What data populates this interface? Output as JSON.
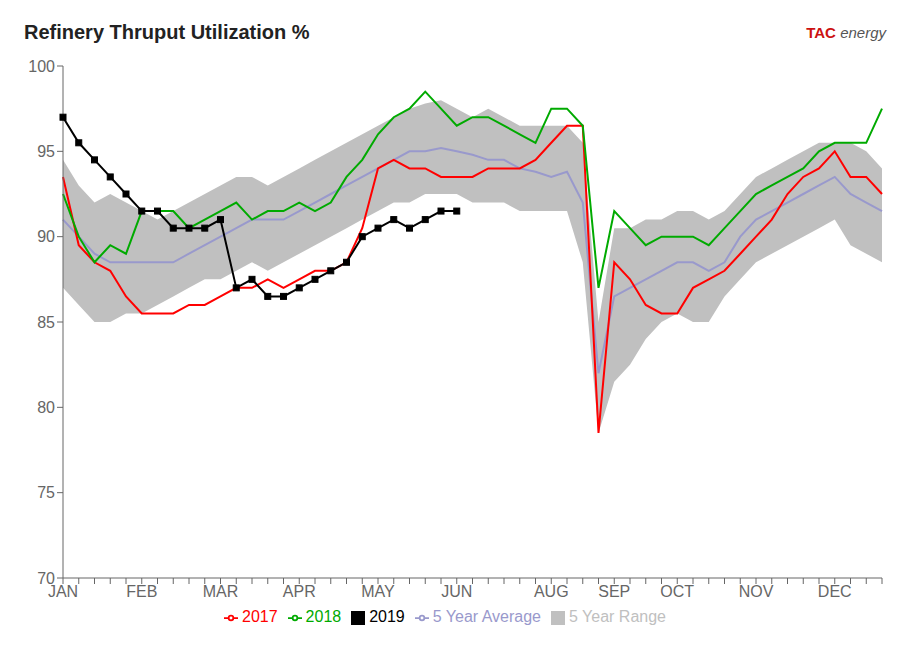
{
  "chart_data": {
    "type": "line",
    "title": "Refinery Thruput Utilization %",
    "annotations": [
      "TAC",
      "energy"
    ],
    "categories": [
      "JAN",
      null,
      null,
      null,
      null,
      "FEB",
      null,
      null,
      null,
      null,
      "MAR",
      null,
      null,
      null,
      null,
      "APR",
      null,
      null,
      null,
      null,
      "MAY",
      null,
      null,
      null,
      null,
      "JUN",
      null,
      null,
      null,
      null,
      null,
      "AUG",
      null,
      null,
      null,
      "SEP",
      null,
      null,
      null,
      "OCT",
      null,
      null,
      null,
      null,
      "NOV",
      null,
      null,
      null,
      null,
      "DEC",
      null,
      null,
      null
    ],
    "ylim": [
      70,
      100
    ],
    "yticks": [
      70,
      75,
      80,
      85,
      90,
      95,
      100
    ],
    "legend": "bottom",
    "series": [
      {
        "name": "5 Year Range",
        "type": "area",
        "color": "#c0c0c0",
        "values": [
          [
            87.0,
            94.5
          ],
          [
            86.0,
            93.0
          ],
          [
            85.0,
            92.0
          ],
          [
            85.0,
            92.5
          ],
          [
            85.5,
            92.0
          ],
          [
            85.5,
            91.5
          ],
          [
            86.0,
            91.0
          ],
          [
            86.5,
            91.5
          ],
          [
            87.0,
            92.0
          ],
          [
            87.5,
            92.5
          ],
          [
            87.5,
            93.0
          ],
          [
            88.0,
            93.5
          ],
          [
            88.5,
            93.5
          ],
          [
            88.0,
            93.0
          ],
          [
            88.5,
            93.5
          ],
          [
            89.0,
            94.0
          ],
          [
            89.5,
            94.5
          ],
          [
            90.0,
            95.0
          ],
          [
            90.5,
            95.5
          ],
          [
            91.0,
            96.0
          ],
          [
            91.5,
            96.5
          ],
          [
            92.0,
            97.0
          ],
          [
            92.0,
            97.5
          ],
          [
            92.5,
            97.8
          ],
          [
            92.5,
            98.0
          ],
          [
            92.5,
            97.5
          ],
          [
            92.0,
            97.0
          ],
          [
            92.0,
            97.5
          ],
          [
            92.0,
            97.0
          ],
          [
            91.5,
            96.5
          ],
          [
            91.5,
            96.5
          ],
          [
            91.5,
            96.5
          ],
          [
            91.5,
            96.5
          ],
          [
            88.5,
            95.5
          ],
          [
            78.5,
            85.0
          ],
          [
            81.5,
            90.5
          ],
          [
            82.5,
            90.5
          ],
          [
            84.0,
            91.0
          ],
          [
            85.0,
            91.0
          ],
          [
            85.5,
            91.5
          ],
          [
            85.0,
            91.5
          ],
          [
            85.0,
            91.0
          ],
          [
            86.5,
            91.5
          ],
          [
            87.5,
            92.5
          ],
          [
            88.5,
            93.5
          ],
          [
            89.0,
            94.0
          ],
          [
            89.5,
            94.5
          ],
          [
            90.0,
            95.0
          ],
          [
            90.5,
            95.5
          ],
          [
            91.0,
            95.5
          ],
          [
            89.5,
            95.5
          ],
          [
            89.0,
            95.0
          ],
          [
            88.5,
            94.0
          ]
        ]
      },
      {
        "name": "5 Year Average",
        "type": "line",
        "color": "#9999cc",
        "values": [
          91.0,
          90.0,
          89.0,
          88.5,
          88.5,
          88.5,
          88.5,
          88.5,
          89.0,
          89.5,
          90.0,
          90.5,
          91.0,
          91.0,
          91.0,
          91.5,
          92.0,
          92.5,
          93.0,
          93.5,
          94.0,
          94.5,
          95.0,
          95.0,
          95.2,
          95.0,
          94.8,
          94.5,
          94.5,
          94.0,
          93.8,
          93.5,
          93.8,
          92.0,
          82.0,
          86.5,
          87.0,
          87.5,
          88.0,
          88.5,
          88.5,
          88.0,
          88.5,
          90.0,
          91.0,
          91.5,
          92.0,
          92.5,
          93.0,
          93.5,
          92.5,
          92.0,
          91.5
        ]
      },
      {
        "name": "2017",
        "type": "line",
        "color": "red",
        "values": [
          93.5,
          89.5,
          88.5,
          88.0,
          86.5,
          85.5,
          85.5,
          85.5,
          86.0,
          86.0,
          86.5,
          87.0,
          87.0,
          87.5,
          87.0,
          87.5,
          88.0,
          88.0,
          88.5,
          90.5,
          94.0,
          94.5,
          94.0,
          94.0,
          93.5,
          93.5,
          93.5,
          94.0,
          94.0,
          94.0,
          94.5,
          95.5,
          96.5,
          96.5,
          78.5,
          88.5,
          87.5,
          86.0,
          85.5,
          85.5,
          87.0,
          87.5,
          88.0,
          89.0,
          90.0,
          91.0,
          92.5,
          93.5,
          94.0,
          95.0,
          93.5,
          93.5,
          92.5
        ]
      },
      {
        "name": "2018",
        "type": "line",
        "color": "#00aa00",
        "values": [
          92.5,
          90.0,
          88.5,
          89.5,
          89.0,
          91.5,
          91.5,
          91.5,
          90.5,
          91.0,
          91.5,
          92.0,
          91.0,
          91.5,
          91.5,
          92.0,
          91.5,
          92.0,
          93.5,
          94.5,
          96.0,
          97.0,
          97.5,
          98.5,
          97.5,
          96.5,
          97.0,
          97.0,
          96.5,
          96.0,
          95.5,
          97.5,
          97.5,
          96.5,
          87.0,
          91.5,
          90.5,
          89.5,
          90.0,
          90.0,
          90.0,
          89.5,
          90.5,
          91.5,
          92.5,
          93.0,
          93.5,
          94.0,
          95.0,
          95.5,
          95.5,
          95.5,
          97.5
        ]
      },
      {
        "name": "2019",
        "type": "line",
        "color": "black",
        "marker": "square",
        "values": [
          97.0,
          95.5,
          94.5,
          93.5,
          92.5,
          91.5,
          91.5,
          90.5,
          90.5,
          90.5,
          91.0,
          87.0,
          87.5,
          86.5,
          86.5,
          87.0,
          87.5,
          88.0,
          88.5,
          90.0,
          90.5,
          91.0,
          90.5,
          91.0,
          91.5,
          91.5,
          null,
          null,
          null,
          null,
          null,
          null,
          null,
          null,
          null,
          null,
          null,
          null,
          null,
          null,
          null,
          null,
          null,
          null,
          null,
          null,
          null,
          null,
          null,
          null,
          null,
          null,
          null
        ]
      }
    ]
  }
}
